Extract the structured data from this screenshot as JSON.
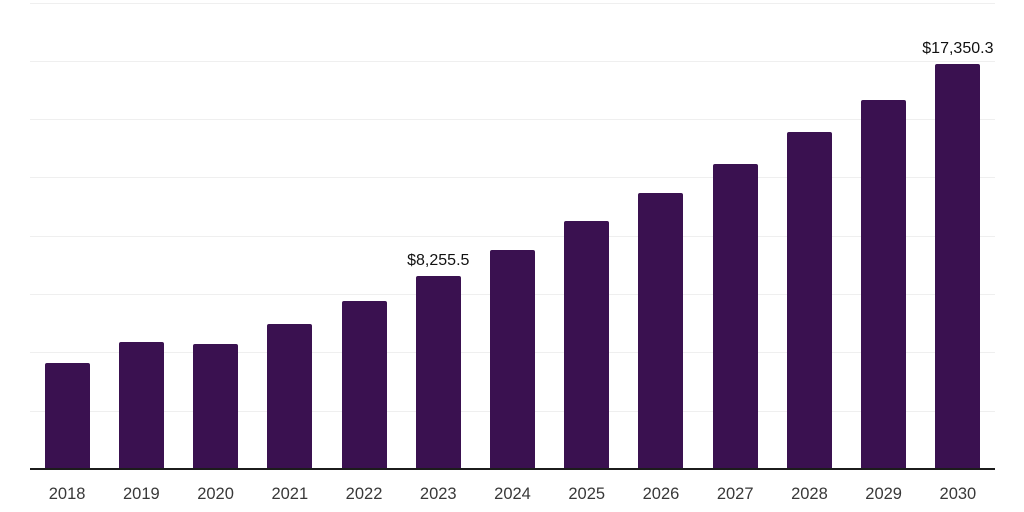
{
  "chart_data": {
    "type": "bar",
    "categories": [
      "2018",
      "2019",
      "2020",
      "2021",
      "2022",
      "2023",
      "2024",
      "2025",
      "2026",
      "2027",
      "2028",
      "2029",
      "2030"
    ],
    "values": [
      4560,
      5450,
      5360,
      6230,
      7200,
      8255.5,
      9410,
      10620,
      11840,
      13080,
      14430,
      15840,
      17350.3
    ],
    "annotations": [
      {
        "index": 5,
        "text": "$8,255.5"
      },
      {
        "index": 12,
        "text": "$17,350.3"
      }
    ],
    "title": "",
    "xlabel": "",
    "ylabel": "",
    "ylim": [
      0,
      20000
    ],
    "gridline_step": 2500,
    "grid": true,
    "legend_position": "none",
    "y_tick_labels_visible": false,
    "colors": {
      "bar": "#3A1150",
      "axis": "#1c1c1c",
      "gridline": "#efefef",
      "tick_label": "#383838",
      "data_label": "#111111",
      "background": "#ffffff"
    }
  }
}
